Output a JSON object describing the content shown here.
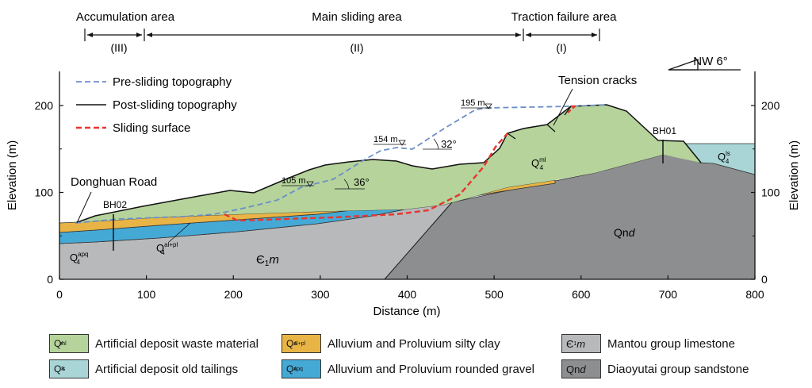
{
  "zones": [
    {
      "name": "Accumulation area",
      "roman": "(III)"
    },
    {
      "name": "Main sliding area",
      "roman": "(II)"
    },
    {
      "name": "Traction failure area",
      "roman": "(I)"
    }
  ],
  "north_arrow": "NW 6°",
  "axes": {
    "x_label": "Distance (m)",
    "y_label_left": "Elevation (m)",
    "y_label_right": "Elevation (m)",
    "x_ticks": [
      0,
      100,
      200,
      300,
      400,
      500,
      600,
      700,
      800
    ],
    "y_ticks": [
      0,
      100,
      200
    ],
    "x_range": [
      0,
      800
    ],
    "y_range": [
      0,
      240
    ]
  },
  "line_legend": [
    {
      "label": "Pre-sliding topography",
      "style": "dashed",
      "color": "#6b8fc7"
    },
    {
      "label": "Post-sliding topography",
      "style": "solid",
      "color": "#111111"
    },
    {
      "label": "Sliding surface",
      "style": "dashed",
      "color": "#e8352e"
    }
  ],
  "annotations": {
    "tension_cracks": "Tension cracks",
    "donghuan_road": "Donghuan Road",
    "bh01": "BH01",
    "bh02": "BH02",
    "elev_195": "195 m",
    "elev_154": "154 m",
    "elev_105": "105 m",
    "angle_32": "32°",
    "angle_36": "36°",
    "layer_qnd": "Qnd",
    "layer_e1m": "Є₁m"
  },
  "colors": {
    "waste": "#b5d39b",
    "tailings": "#a9d5d6",
    "silty_clay": "#e8b446",
    "gravel": "#45a9d6",
    "limestone": "#b8b9bb",
    "sandstone": "#8d8e90"
  },
  "legend": [
    {
      "symbol": "Q4ml",
      "label": "Artificial deposit waste material",
      "color": "#b5d39b"
    },
    {
      "symbol": "Q4al+pl",
      "label": "Alluvium and Proluvium silty clay",
      "color": "#e8b446"
    },
    {
      "symbol": "Є1m",
      "label": "Mantou group limestone",
      "color": "#b8b9bb"
    },
    {
      "symbol": "Q4ls",
      "label": "Artificial deposit old tailings",
      "color": "#a9d5d6"
    },
    {
      "symbol": "Q4apq",
      "label": "Alluvium and Proluvium rounded gravel",
      "color": "#45a9d6"
    },
    {
      "symbol": "Qnd",
      "label": "Diaoyutai group sandstone",
      "color": "#8d8e90"
    }
  ]
}
